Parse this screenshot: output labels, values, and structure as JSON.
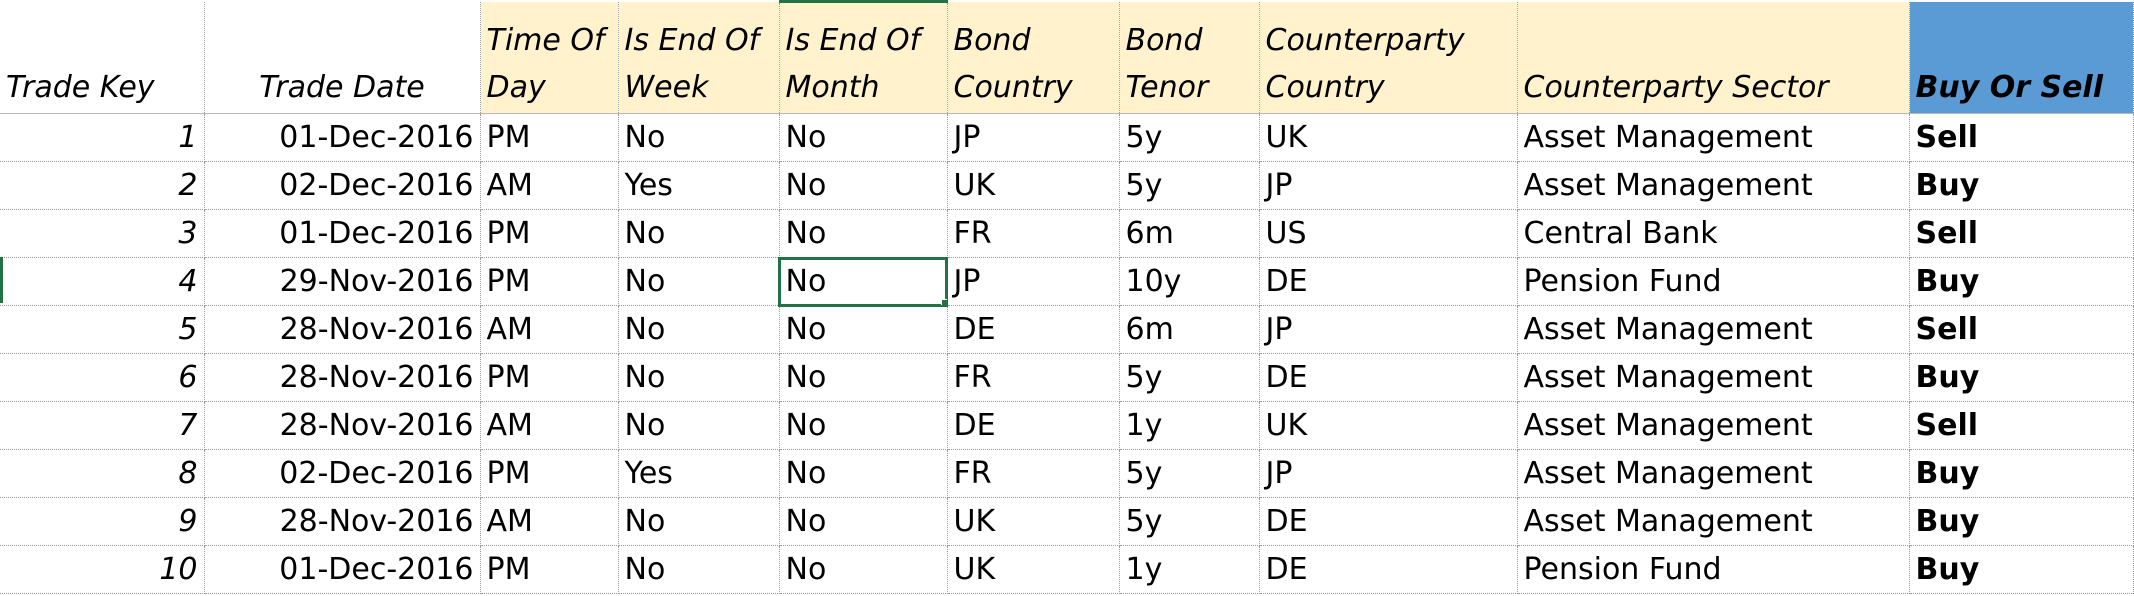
{
  "sheet": {
    "headers": [
      "Trade Key",
      "Trade Date",
      "Time Of Day",
      "Is End Of Week",
      "Is End Of Month",
      "Bond Country",
      "Bond Tenor",
      "Counterparty Country",
      "Counterparty Sector",
      "Buy Or Sell"
    ],
    "rows": [
      [
        "1",
        "01-Dec-2016",
        "PM",
        "No",
        "No",
        "JP",
        "5y",
        "UK",
        "Asset Management",
        "Sell"
      ],
      [
        "2",
        "02-Dec-2016",
        "AM",
        "Yes",
        "No",
        "UK",
        "5y",
        "JP",
        "Asset Management",
        "Buy"
      ],
      [
        "3",
        "01-Dec-2016",
        "PM",
        "No",
        "No",
        "FR",
        "6m",
        "US",
        "Central Bank",
        "Sell"
      ],
      [
        "4",
        "29-Nov-2016",
        "PM",
        "No",
        "No",
        "JP",
        "10y",
        "DE",
        "Pension Fund",
        "Buy"
      ],
      [
        "5",
        "28-Nov-2016",
        "AM",
        "No",
        "No",
        "DE",
        "6m",
        "JP",
        "Asset Management",
        "Sell"
      ],
      [
        "6",
        "28-Nov-2016",
        "PM",
        "No",
        "No",
        "FR",
        "5y",
        "DE",
        "Asset Management",
        "Buy"
      ],
      [
        "7",
        "28-Nov-2016",
        "AM",
        "No",
        "No",
        "DE",
        "1y",
        "UK",
        "Asset Management",
        "Sell"
      ],
      [
        "8",
        "02-Dec-2016",
        "PM",
        "Yes",
        "No",
        "FR",
        "5y",
        "JP",
        "Asset Management",
        "Buy"
      ],
      [
        "9",
        "28-Nov-2016",
        "AM",
        "No",
        "No",
        "UK",
        "5y",
        "DE",
        "Asset Management",
        "Buy"
      ],
      [
        "10",
        "01-Dec-2016",
        "PM",
        "No",
        "No",
        "UK",
        "1y",
        "DE",
        "Pension Fund",
        "Buy"
      ]
    ]
  },
  "colors": {
    "header_tint": "#fff2cc",
    "header_blue": "#5b9bd5",
    "selection": "#217346",
    "gridline": "#9a9a9a"
  }
}
